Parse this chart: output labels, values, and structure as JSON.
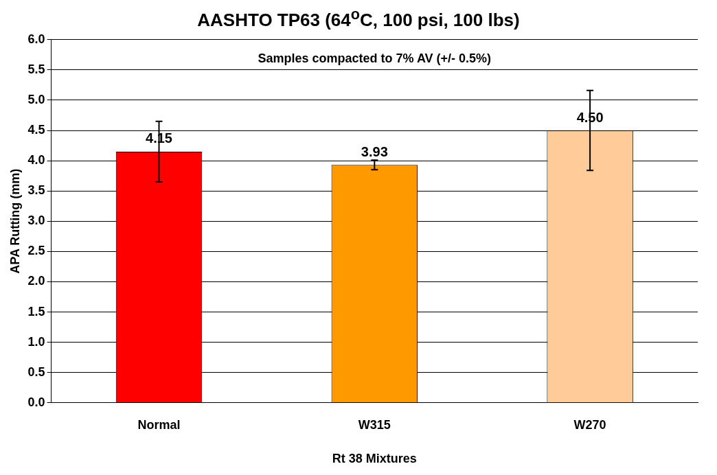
{
  "chart_data": {
    "type": "bar",
    "title": "AASHTO TP63 (64$^{o}$C, 100 psi, 100 lbs)",
    "xlabel": "Rt 38 Mixtures",
    "ylabel": "APA Rutting (mm)",
    "annotations": [
      "Samples compacted to 7% AV (+/- 0.5%)"
    ],
    "categories": [
      "Normal",
      "W315",
      "W270"
    ],
    "values": [
      4.15,
      3.93,
      4.5
    ],
    "colors": [
      "#ff0000",
      "#ff9900",
      "#ffcc99"
    ],
    "errors": [
      0.5,
      0.08,
      0.66
    ],
    "value_labels": [
      "4.15",
      "3.93",
      "4.50"
    ],
    "ylim": [
      0,
      6
    ],
    "yticks": [
      {
        "value": 0,
        "label": "0.0"
      },
      {
        "value": 0.5,
        "label": "0.5"
      },
      {
        "value": 1,
        "label": "1.0"
      },
      {
        "value": 1.5,
        "label": "1.5"
      },
      {
        "value": 2,
        "label": "2.0"
      },
      {
        "value": 2.5,
        "label": "2.5"
      },
      {
        "value": 3,
        "label": "3.0"
      },
      {
        "value": 3.5,
        "label": "3.5"
      },
      {
        "value": 4,
        "label": "4.0"
      },
      {
        "value": 4.5,
        "label": "4.5"
      },
      {
        "value": 5,
        "label": "5.0"
      },
      {
        "value": 5.5,
        "label": "5.5"
      },
      {
        "value": 6,
        "label": "6.0"
      }
    ],
    "grid": "y"
  }
}
